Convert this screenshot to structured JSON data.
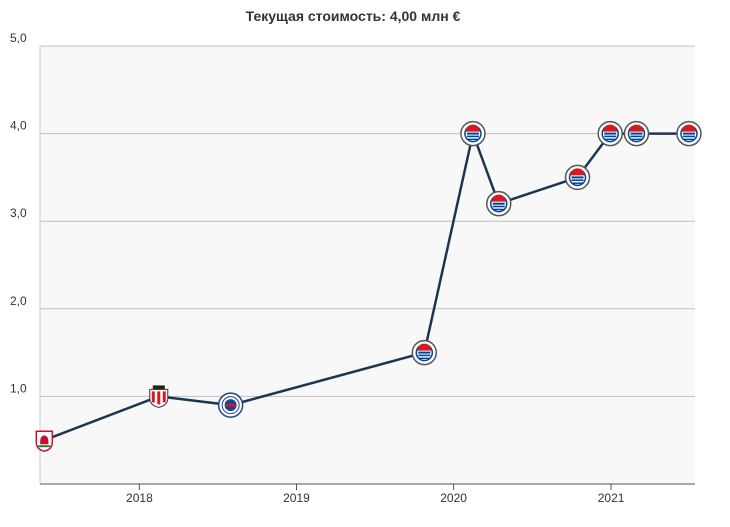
{
  "chart_data": {
    "type": "line",
    "title": "Текущая стоимость: 4,00 млн €",
    "ylim": [
      0,
      5
    ],
    "y_ticks": [
      {
        "value": 1,
        "label": "1,0"
      },
      {
        "value": 2,
        "label": "2,0"
      },
      {
        "value": 3,
        "label": "3,0"
      },
      {
        "value": 4,
        "label": "4,0"
      },
      {
        "value": 5,
        "label": "5,0"
      }
    ],
    "xlim": [
      "2017-05-15",
      "2021-07-15"
    ],
    "x_ticks": [
      {
        "value": "2018-01-01",
        "label": "2018"
      },
      {
        "value": "2019-01-01",
        "label": "2019"
      },
      {
        "value": "2020-01-01",
        "label": "2020"
      },
      {
        "value": "2021-01-01",
        "label": "2021"
      }
    ],
    "grid": "horizontal",
    "series": [
      {
        "color": "#1c3553",
        "points": [
          {
            "x": "2017-05-25",
            "y": 0.5,
            "icon": "liverpool-crest-icon",
            "icon_color": "#c8102e"
          },
          {
            "x": "2018-02-15",
            "y": 1.0,
            "icon": "sunderland-crest-icon",
            "icon_color": "#d71920"
          },
          {
            "x": "2018-08-01",
            "y": 0.9,
            "icon": "rangers-crest-icon",
            "icon_color": "#1b458f"
          },
          {
            "x": "2019-10-25",
            "y": 1.5,
            "icon": "reading-crest-icon",
            "icon_color": "#004494"
          },
          {
            "x": "2020-02-15",
            "y": 4.0,
            "icon": "reading-crest-icon",
            "icon_color": "#004494"
          },
          {
            "x": "2020-04-15",
            "y": 3.2,
            "icon": "reading-crest-icon",
            "icon_color": "#004494"
          },
          {
            "x": "2020-10-15",
            "y": 3.5,
            "icon": "reading-crest-icon",
            "icon_color": "#004494"
          },
          {
            "x": "2020-12-30",
            "y": 4.0,
            "icon": "reading-crest-icon",
            "icon_color": "#004494"
          },
          {
            "x": "2021-03-01",
            "y": 4.0,
            "icon": "reading-crest-icon",
            "icon_color": "#004494"
          },
          {
            "x": "2021-07-01",
            "y": 4.0,
            "icon": "reading-crest-icon",
            "icon_color": "#004494"
          }
        ]
      }
    ]
  }
}
